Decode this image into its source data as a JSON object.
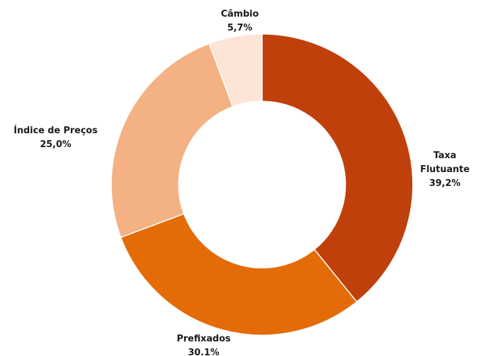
{
  "chart_data": {
    "type": "donut",
    "categories": [
      "Taxa Flutuante",
      "Prefixados",
      "Índice de Preços",
      "Câmbio"
    ],
    "values": [
      39.2,
      30.1,
      25.0,
      5.7
    ],
    "value_labels": [
      "39,2%",
      "30.1%",
      "25,0%",
      "5,7%"
    ],
    "colors": [
      "#c0400b",
      "#e36c09",
      "#f4b183",
      "#fce4d6"
    ]
  }
}
